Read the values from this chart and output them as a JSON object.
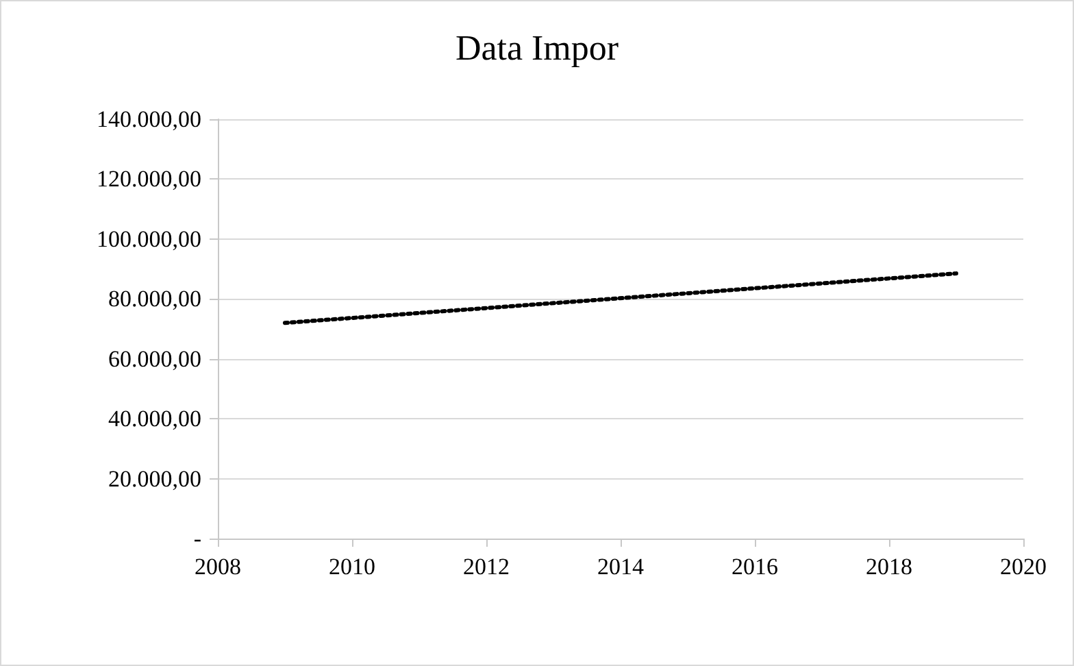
{
  "chart_data": {
    "type": "line",
    "title": "Data Impor",
    "x": [
      2009,
      2019
    ],
    "series": [
      {
        "color": "#000000",
        "values": [
          72000,
          88500
        ]
      }
    ],
    "line_style": "dotted",
    "marker": "none",
    "grid": "y",
    "xlim": [
      2008,
      2020
    ],
    "xticks": [
      2008,
      2010,
      2012,
      2014,
      2016,
      2018,
      2020
    ],
    "ylim": [
      0,
      140000
    ],
    "yticks": [
      {
        "value": 0,
        "label": "-"
      },
      {
        "value": 20000,
        "label": "20.000,00"
      },
      {
        "value": 40000,
        "label": "40.000,00"
      },
      {
        "value": 60000,
        "label": "60.000,00"
      },
      {
        "value": 80000,
        "label": "80.000,00"
      },
      {
        "value": 100000,
        "label": "100.000,00"
      },
      {
        "value": 120000,
        "label": "120.000,00"
      },
      {
        "value": 140000,
        "label": "140.000,00"
      }
    ]
  }
}
